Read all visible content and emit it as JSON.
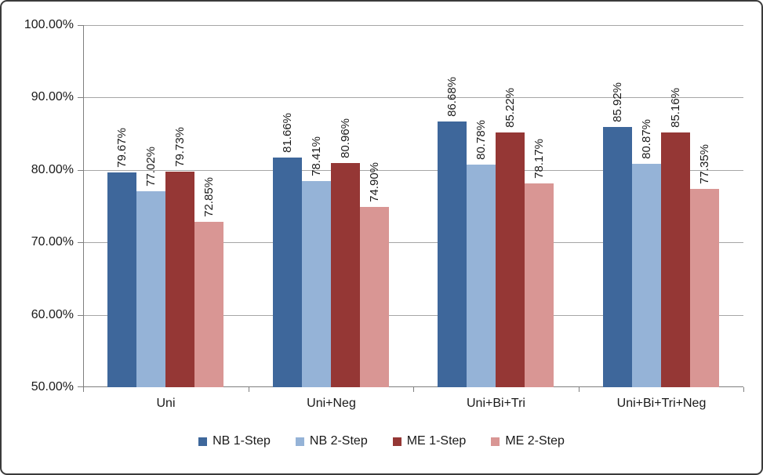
{
  "chart_data": {
    "type": "bar",
    "categories": [
      "Uni",
      "Uni+Neg",
      "Uni+Bi+Tri",
      "Uni+Bi+Tri+Neg"
    ],
    "series": [
      {
        "name": "NB 1-Step",
        "color": "#3E679B",
        "values": [
          79.67,
          81.66,
          86.68,
          85.92
        ],
        "labels": [
          "79.67%",
          "81.66%",
          "86.68%",
          "85.92%"
        ]
      },
      {
        "name": "NB 2-Step",
        "color": "#95B3D7",
        "values": [
          77.02,
          78.41,
          80.78,
          80.87
        ],
        "labels": [
          "77.02%",
          "78.41%",
          "80.78%",
          "80.87%"
        ]
      },
      {
        "name": "ME 1-Step",
        "color": "#953735",
        "values": [
          79.73,
          80.96,
          85.22,
          85.16
        ],
        "labels": [
          "79.73%",
          "80.96%",
          "85.22%",
          "85.16%"
        ]
      },
      {
        "name": "ME 2-Step",
        "color": "#D99694",
        "values": [
          72.85,
          74.9,
          78.17,
          77.35
        ],
        "labels": [
          "72.85%",
          "74.90%",
          "78.17%",
          "77.35%"
        ]
      }
    ],
    "ylim": [
      50,
      100
    ],
    "ytick_step": 10,
    "ytick_labels": [
      "50.00%",
      "60.00%",
      "70.00%",
      "80.00%",
      "90.00%",
      "100.00%"
    ],
    "grid": true,
    "legend_position": "bottom",
    "data_labels_rotated": true
  }
}
